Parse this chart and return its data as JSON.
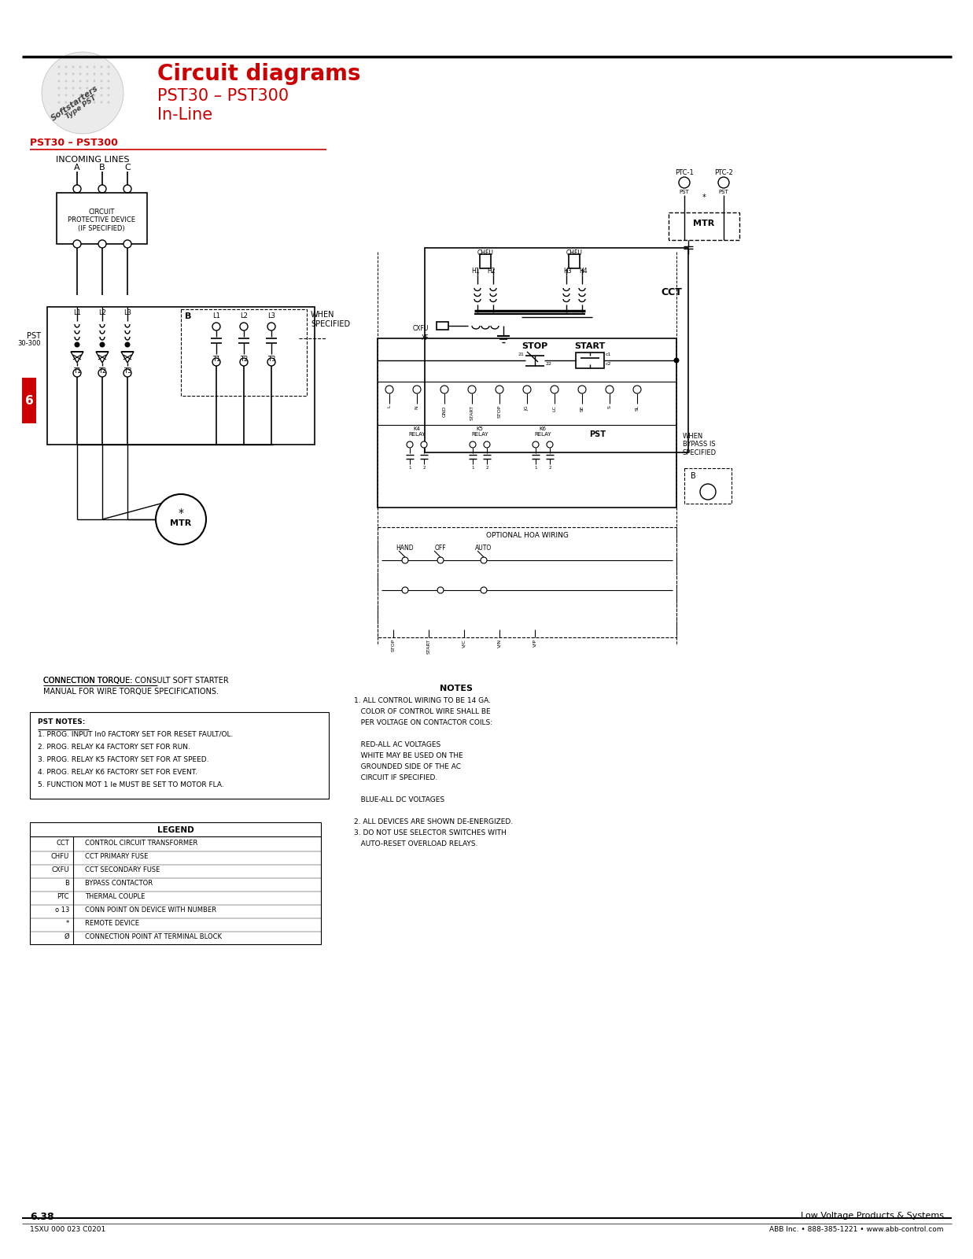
{
  "title_main": "Circuit diagrams",
  "title_sub1": "PST30 – PST300",
  "title_sub2": "In-Line",
  "section_title": "PST30 – PST300",
  "page_num": "6.38",
  "page_right": "Low Voltage Products & Systems",
  "footer_left": "1SXU 000 023 C0201",
  "footer_right": "ABB Inc. • 888-385-1221 • www.abb-control.com",
  "red_color": "#CC0000",
  "black_color": "#000000",
  "gray_color": "#888888",
  "light_gray": "#D0D0D0",
  "bg_color": "#FFFFFF",
  "legend_items": [
    [
      "CCT",
      "CONTROL CIRCUIT TRANSFORMER"
    ],
    [
      "CHFU",
      "CCT PRIMARY FUSE"
    ],
    [
      "CXFU",
      "CCT SECONDARY FUSE"
    ],
    [
      "B",
      "BYPASS CONTACTOR"
    ],
    [
      "PTC",
      "THERMAL COUPLE"
    ],
    [
      "o 13",
      "CONN POINT ON DEVICE WITH NUMBER"
    ],
    [
      "*",
      "REMOTE DEVICE"
    ],
    [
      "Ø",
      "CONNECTION POINT AT TERMINAL BLOCK"
    ]
  ],
  "pst_notes": [
    "PST NOTES:",
    "1. PROG. INPUT In0 FACTORY SET FOR RESET FAULT/OL.",
    "2. PROG. RELAY K4 FACTORY SET FOR RUN.",
    "3. PROG. RELAY K5 FACTORY SET FOR AT SPEED.",
    "4. PROG. RELAY K6 FACTORY SET FOR EVENT.",
    "5. FUNCTION MOT 1 Ie MUST BE SET TO MOTOR FLA."
  ],
  "conn_torque_line1": "CONNECTION TORQUE: CONSULT SOFT STARTER",
  "conn_torque_line2": "MANUAL FOR WIRE TORQUE SPECIFICATIONS.",
  "notes_title": "NOTES",
  "notes": [
    "1. ALL CONTROL WIRING TO BE 14 GA.",
    "   COLOR OF CONTROL WIRE SHALL BE",
    "   PER VOLTAGE ON CONTACTOR COILS:",
    "",
    "   RED-ALL AC VOLTAGES",
    "   WHITE MAY BE USED ON THE",
    "   GROUNDED SIDE OF THE AC",
    "   CIRCUIT IF SPECIFIED.",
    "",
    "   BLUE-ALL DC VOLTAGES",
    "",
    "2. ALL DEVICES ARE SHOWN DE-ENERGIZED.",
    "3. DO NOT USE SELECTOR SWITCHES WITH",
    "   AUTO-RESET OVERLOAD RELAYS."
  ],
  "optional_hoa": "OPTIONAL HOA WIRING",
  "terminal_labels": [
    "L",
    "N",
    "GND",
    "START",
    "STOP",
    "JG",
    "LC",
    "SE",
    "S",
    "SL"
  ],
  "hoa_terms": [
    "STOP",
    "START",
    "V/C",
    "V/N",
    "V/P"
  ],
  "relay_labels": [
    "K4\nRELAY",
    "K5\nRELAY",
    "K6\nRELAY"
  ]
}
